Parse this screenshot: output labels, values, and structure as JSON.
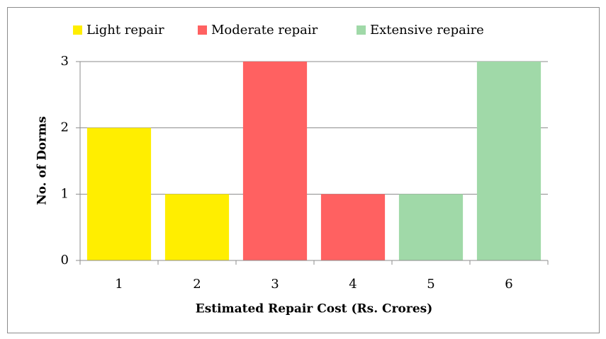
{
  "chart_data": {
    "type": "bar",
    "categories": [
      "1",
      "2",
      "3",
      "4",
      "5",
      "6"
    ],
    "series": [
      {
        "name": "Light repair",
        "color": "#ffee00",
        "values": [
          2,
          1,
          null,
          null,
          null,
          null
        ]
      },
      {
        "name": "Moderate repair",
        "color": "#ff6161",
        "values": [
          null,
          null,
          3,
          1,
          null,
          null
        ]
      },
      {
        "name": "Extensive repaire",
        "color": "#a0d9a8",
        "values": [
          null,
          null,
          null,
          null,
          1,
          3
        ]
      }
    ],
    "xlabel": "Estimated Repair Cost (Rs. Crores)",
    "ylabel": "No. of Dorms",
    "ylim": [
      0,
      3
    ],
    "yticks": [
      0,
      1,
      2,
      3
    ],
    "grid": true,
    "legend": "top"
  }
}
